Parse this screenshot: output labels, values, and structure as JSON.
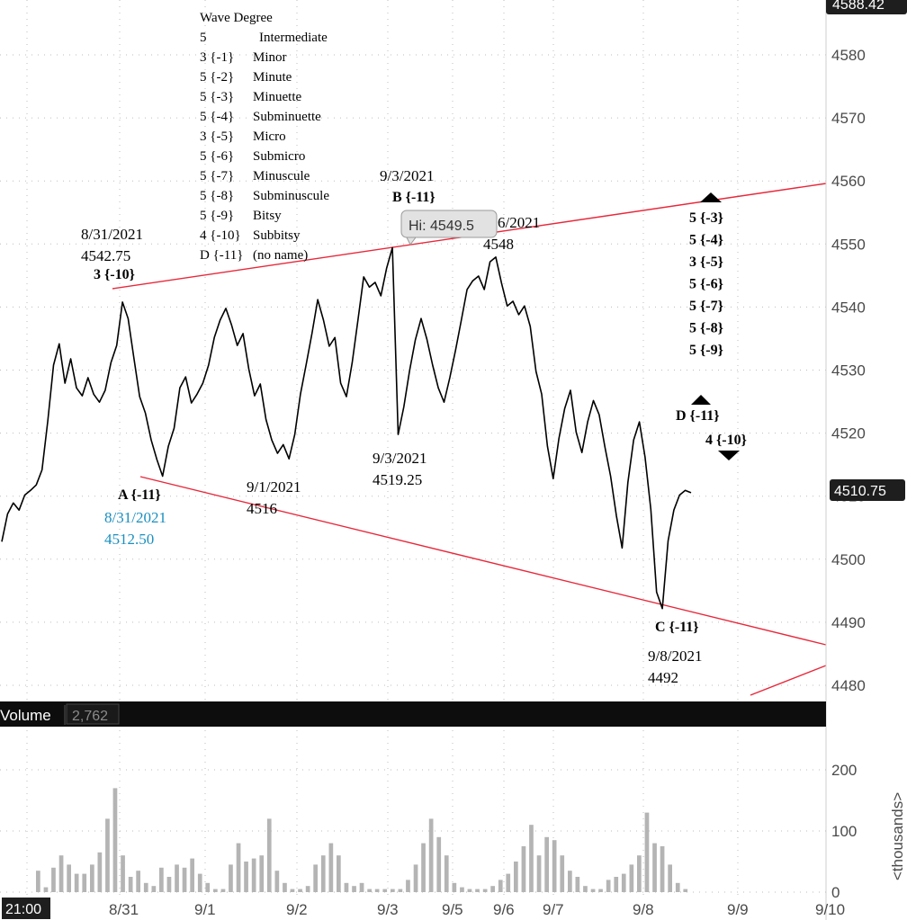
{
  "chart_data": [
    {
      "type": "line",
      "title": "",
      "ylim": [
        4478,
        4591
      ],
      "y_ticks": [
        4480,
        4490,
        4500,
        4510,
        4520,
        4530,
        4540,
        4550,
        4560,
        4570,
        4580
      ],
      "x_ticks": [
        "21:00",
        "8/31",
        "9/1",
        "9/2",
        "9/3",
        "9/5",
        "9/6",
        "9/7",
        "9/8",
        "9/9",
        "9/10"
      ],
      "grid": true,
      "last_price": "4510.75",
      "top_price_tag": "4588.42",
      "hi_label": "Hi: 4549.5",
      "series": [
        {
          "values": [
            4503,
            4507,
            4509,
            4508,
            4510,
            4511,
            4512,
            4514,
            4522,
            4531,
            4534,
            4528,
            4532,
            4527,
            4526,
            4529,
            4526,
            4525,
            4527,
            4531,
            4534,
            4541,
            4538,
            4532,
            4526,
            4523,
            4519,
            4516,
            4513,
            4518,
            4521,
            4527,
            4529,
            4525,
            4526,
            4528,
            4531,
            4535,
            4538,
            4540,
            4537,
            4534,
            4536,
            4530,
            4526,
            4528,
            4522,
            4519,
            4517,
            4518,
            4516,
            4520,
            4526,
            4531,
            4536,
            4541,
            4538,
            4534,
            4535,
            4528,
            4526,
            4531,
            4538,
            4545,
            4543,
            4544,
            4542,
            4546,
            4549.5,
            4520,
            4524,
            4530,
            4535,
            4538,
            4535,
            4531,
            4527,
            4525,
            4529,
            4533,
            4538,
            4543,
            4544,
            4545,
            4543,
            4547,
            4548,
            4544,
            4540,
            4541,
            4539,
            4540,
            4537,
            4530,
            4526,
            4518,
            4513,
            4519,
            4524,
            4527,
            4520,
            4517,
            4522,
            4525,
            4523,
            4518,
            4513,
            4507,
            4502,
            4512,
            4519,
            4522,
            4516,
            4508,
            4495,
            4492,
            4503,
            4508,
            4510,
            4511,
            4510.75
          ]
        },
        {
          "name": "Volume",
          "values": [
            35,
            8,
            40,
            60,
            45,
            30,
            30,
            45,
            65,
            120,
            170,
            60,
            25,
            35,
            15,
            10,
            40,
            25,
            45,
            40,
            55,
            30,
            15,
            5,
            5,
            45,
            80,
            50,
            55,
            60,
            120,
            35,
            15,
            5,
            5,
            10,
            45,
            60,
            80,
            60,
            15,
            10,
            15,
            5,
            5,
            5,
            5,
            5,
            20,
            45,
            80,
            120,
            90,
            60,
            15,
            8,
            5,
            5,
            5,
            10,
            20,
            30,
            50,
            75,
            110,
            60,
            90,
            85,
            60,
            35,
            25,
            10,
            5,
            5,
            20,
            25,
            30,
            45,
            60,
            130,
            80,
            75,
            45,
            15,
            5
          ]
        }
      ],
      "volume_label": "Volume",
      "volume_value": "2,762",
      "volume_ticks": [
        "0",
        "100",
        "200"
      ],
      "volume_unit": "<thousands>",
      "wave_legend": {
        "title": "Wave Degree",
        "rows": [
          {
            "count": "5",
            "degree": "Intermediate"
          },
          {
            "count": "3 {-1}",
            "degree": "Minor"
          },
          {
            "count": "5 {-2}",
            "degree": "Minute"
          },
          {
            "count": "5 {-3}",
            "degree": "Minuette"
          },
          {
            "count": "5 {-4}",
            "degree": "Subminuette"
          },
          {
            "count": "3 {-5}",
            "degree": "Micro"
          },
          {
            "count": "5 {-6}",
            "degree": "Submicro"
          },
          {
            "count": "5 {-7}",
            "degree": "Minuscule"
          },
          {
            "count": "5 {-8}",
            "degree": "Subminuscule"
          },
          {
            "count": "5 {-9}",
            "degree": "Bitsy"
          },
          {
            "count": "4 {-10}",
            "degree": "Subbitsy"
          },
          {
            "count": "D {-11}",
            "degree": "(no name)"
          }
        ]
      },
      "annotations": {
        "peak1_date": "8/31/2021",
        "peak1_price": "4542.75",
        "peak1_wave": "3 {-10}",
        "a_label": "A {-11}",
        "a_date": "8/31/2021",
        "a_price": "4512.50",
        "low_9_1_date": "9/1/2021",
        "low_9_1_price": "4516",
        "b_date": "9/3/2021",
        "b_label": "B {-11}",
        "low_9_3_date": "9/3/2021",
        "low_9_3_price": "4519.25",
        "peak_9_6_date": "6/2021",
        "peak_9_6_price": "4548",
        "c_label": "C {-11}",
        "c_date": "9/8/2021",
        "c_price": "4492",
        "d_label": "D {-11}",
        "four_label": "4 {-10}",
        "wave_stack": [
          "5 {-3}",
          "5 {-4}",
          "3 {-5}",
          "5 {-6}",
          "5 {-7}",
          "5 {-8}",
          "5 {-9}"
        ]
      }
    }
  ],
  "colors": {
    "trendline": "#e8283a",
    "price": "#000000",
    "volume": "#b4b4b4",
    "annotation_blue": "#1a8fc0",
    "axis_tag": "#1e1e1e"
  }
}
